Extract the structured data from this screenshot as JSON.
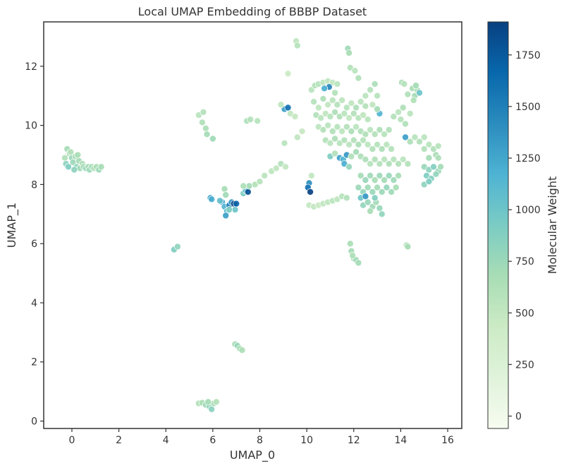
{
  "chart_data": {
    "type": "scatter",
    "title": "Local UMAP Embedding of BBBP Dataset",
    "xlabel": "UMAP_0",
    "ylabel": "UMAP_1",
    "xlim": [
      -1.2,
      16.6
    ],
    "ylim": [
      -0.25,
      13.5
    ],
    "xticks": [
      0,
      2,
      4,
      6,
      8,
      10,
      12,
      14,
      16
    ],
    "yticks": [
      0,
      2,
      4,
      6,
      8,
      10,
      12
    ],
    "grid": false,
    "color_encoding": "Molecular Weight",
    "colorbar": {
      "label": "Molecular Weight",
      "range": [
        -60,
        1910
      ],
      "ticks": [
        0,
        250,
        500,
        750,
        1000,
        1250,
        1500,
        1750
      ],
      "colormap": "GnBu",
      "stops": [
        "#f7fcf0",
        "#e0f3db",
        "#ccebc5",
        "#a8ddb5",
        "#7bccc4",
        "#4eb3d3",
        "#2b8cbe",
        "#0868ac",
        "#084081"
      ]
    },
    "point_style": {
      "edge_color": "#ffffff",
      "opacity": 0.92
    },
    "points": [
      [
        -0.3,
        8.9,
        620
      ],
      [
        -0.2,
        9.2,
        700
      ],
      [
        -0.1,
        9.05,
        680
      ],
      [
        0.0,
        8.9,
        760
      ],
      [
        -0.25,
        8.7,
        820
      ],
      [
        -0.15,
        8.6,
        900
      ],
      [
        0.05,
        8.75,
        740
      ],
      [
        0.15,
        8.95,
        650
      ],
      [
        0.2,
        8.6,
        780
      ],
      [
        0.3,
        8.8,
        700
      ],
      [
        0.35,
        8.55,
        720
      ],
      [
        0.45,
        8.7,
        640
      ],
      [
        0.5,
        8.6,
        690
      ],
      [
        0.6,
        8.55,
        760
      ],
      [
        0.7,
        8.6,
        680
      ],
      [
        0.75,
        8.5,
        740
      ],
      [
        0.85,
        8.6,
        700
      ],
      [
        0.95,
        8.55,
        640
      ],
      [
        1.05,
        8.6,
        660
      ],
      [
        1.15,
        8.5,
        720
      ],
      [
        1.25,
        8.6,
        680
      ],
      [
        0.1,
        8.5,
        820
      ],
      [
        -0.05,
        9.1,
        600
      ],
      [
        0.25,
        9.0,
        660
      ],
      [
        5.4,
        10.35,
        560
      ],
      [
        5.6,
        10.45,
        600
      ],
      [
        5.55,
        10.1,
        620
      ],
      [
        5.7,
        9.9,
        650
      ],
      [
        5.75,
        9.7,
        700
      ],
      [
        6.0,
        9.55,
        720
      ],
      [
        6.5,
        7.85,
        680
      ],
      [
        6.55,
        7.65,
        720
      ],
      [
        6.4,
        7.4,
        1200
      ],
      [
        6.5,
        7.25,
        1150
      ],
      [
        6.6,
        7.1,
        1100
      ],
      [
        6.55,
        6.95,
        1300
      ],
      [
        6.7,
        7.3,
        1500
      ],
      [
        6.8,
        7.4,
        1350
      ],
      [
        6.9,
        7.35,
        1900
      ],
      [
        6.95,
        7.15,
        1000
      ],
      [
        7.0,
        7.35,
        1700
      ],
      [
        6.3,
        7.45,
        1050
      ],
      [
        5.9,
        7.55,
        1300
      ],
      [
        5.95,
        7.5,
        1200
      ],
      [
        6.7,
        7.15,
        900
      ],
      [
        7.3,
        7.7,
        900
      ],
      [
        7.4,
        7.8,
        1050
      ],
      [
        7.5,
        7.75,
        1800
      ],
      [
        7.55,
        7.95,
        700
      ],
      [
        7.3,
        7.95,
        650
      ],
      [
        7.45,
        10.15,
        650
      ],
      [
        7.6,
        10.2,
        600
      ],
      [
        7.9,
        10.15,
        580
      ],
      [
        7.8,
        8.0,
        600
      ],
      [
        8.0,
        8.1,
        580
      ],
      [
        8.2,
        8.3,
        560
      ],
      [
        8.5,
        8.45,
        540
      ],
      [
        8.7,
        8.55,
        520
      ],
      [
        8.9,
        8.7,
        600
      ],
      [
        9.1,
        8.6,
        500
      ],
      [
        9.05,
        10.55,
        1300
      ],
      [
        9.2,
        10.6,
        1600
      ],
      [
        8.9,
        10.7,
        520
      ],
      [
        9.3,
        10.4,
        500
      ],
      [
        9.5,
        10.3,
        480
      ],
      [
        9.6,
        9.6,
        520
      ],
      [
        9.8,
        9.8,
        460
      ],
      [
        9.05,
        9.4,
        560
      ],
      [
        9.2,
        11.75,
        420
      ],
      [
        9.55,
        12.85,
        520
      ],
      [
        9.6,
        12.7,
        580
      ],
      [
        10.1,
        8.05,
        1400
      ],
      [
        10.05,
        7.9,
        1600
      ],
      [
        10.15,
        7.75,
        1900
      ],
      [
        10.2,
        8.3,
        500
      ],
      [
        10.1,
        7.3,
        480
      ],
      [
        10.3,
        7.25,
        500
      ],
      [
        10.5,
        7.3,
        460
      ],
      [
        10.7,
        7.35,
        500
      ],
      [
        10.9,
        7.4,
        520
      ],
      [
        11.1,
        7.45,
        560
      ],
      [
        11.3,
        7.5,
        540
      ],
      [
        11.5,
        7.6,
        580
      ],
      [
        11.7,
        7.55,
        620
      ],
      [
        10.2,
        11.2,
        560
      ],
      [
        10.35,
        11.35,
        600
      ],
      [
        10.5,
        11.4,
        580
      ],
      [
        10.7,
        11.45,
        540
      ],
      [
        10.9,
        11.5,
        520
      ],
      [
        11.1,
        11.45,
        500
      ],
      [
        11.3,
        11.4,
        560
      ],
      [
        10.95,
        11.3,
        1450
      ],
      [
        10.75,
        11.25,
        1200
      ],
      [
        11.2,
        11.1,
        600
      ],
      [
        11.75,
        12.6,
        720
      ],
      [
        11.8,
        12.45,
        680
      ],
      [
        11.85,
        11.95,
        600
      ],
      [
        12.05,
        11.85,
        560
      ],
      [
        12.2,
        11.6,
        620
      ],
      [
        10.3,
        10.8,
        580
      ],
      [
        10.5,
        10.6,
        520
      ],
      [
        10.7,
        10.9,
        640
      ],
      [
        10.9,
        10.7,
        500
      ],
      [
        11.1,
        10.85,
        560
      ],
      [
        11.3,
        10.7,
        600
      ],
      [
        11.5,
        10.85,
        540
      ],
      [
        11.7,
        10.6,
        580
      ],
      [
        11.9,
        10.75,
        520
      ],
      [
        12.1,
        10.6,
        640
      ],
      [
        12.3,
        10.8,
        560
      ],
      [
        12.5,
        10.65,
        600
      ],
      [
        10.4,
        10.35,
        600
      ],
      [
        10.6,
        10.25,
        560
      ],
      [
        10.8,
        10.4,
        520
      ],
      [
        11.0,
        10.3,
        580
      ],
      [
        11.2,
        10.45,
        640
      ],
      [
        11.4,
        10.3,
        620
      ],
      [
        11.6,
        10.4,
        560
      ],
      [
        11.8,
        10.25,
        500
      ],
      [
        12.0,
        10.4,
        600
      ],
      [
        12.2,
        10.25,
        580
      ],
      [
        12.4,
        10.35,
        520
      ],
      [
        10.5,
        9.95,
        540
      ],
      [
        10.7,
        9.85,
        600
      ],
      [
        10.9,
        10.0,
        560
      ],
      [
        11.1,
        9.8,
        620
      ],
      [
        11.3,
        9.95,
        580
      ],
      [
        11.5,
        9.8,
        540
      ],
      [
        11.7,
        9.95,
        600
      ],
      [
        11.9,
        9.8,
        640
      ],
      [
        12.1,
        9.95,
        560
      ],
      [
        12.3,
        9.8,
        620
      ],
      [
        10.8,
        9.5,
        600
      ],
      [
        11.0,
        9.4,
        560
      ],
      [
        11.2,
        9.55,
        640
      ],
      [
        11.4,
        9.4,
        580
      ],
      [
        11.6,
        9.5,
        620
      ],
      [
        11.8,
        9.35,
        560
      ],
      [
        12.0,
        9.5,
        600
      ],
      [
        12.2,
        9.35,
        660
      ],
      [
        12.4,
        9.5,
        580
      ],
      [
        11.0,
        8.95,
        900
      ],
      [
        11.2,
        9.05,
        620
      ],
      [
        11.4,
        8.9,
        1300
      ],
      [
        11.55,
        8.85,
        1150
      ],
      [
        11.7,
        9.0,
        1350
      ],
      [
        11.9,
        8.95,
        620
      ],
      [
        12.1,
        9.1,
        700
      ],
      [
        12.3,
        8.95,
        640
      ],
      [
        11.6,
        8.7,
        1200
      ],
      [
        11.8,
        8.6,
        780
      ],
      [
        12.5,
        11.0,
        560
      ],
      [
        12.7,
        11.2,
        600
      ],
      [
        12.9,
        11.4,
        640
      ],
      [
        13.0,
        11.0,
        580
      ],
      [
        12.8,
        10.7,
        520
      ],
      [
        13.1,
        10.4,
        1150
      ],
      [
        13.0,
        10.55,
        700
      ],
      [
        12.6,
        10.2,
        560
      ],
      [
        12.5,
        9.7,
        620
      ],
      [
        12.7,
        9.85,
        560
      ],
      [
        12.9,
        9.7,
        600
      ],
      [
        13.1,
        9.85,
        640
      ],
      [
        13.3,
        9.7,
        580
      ],
      [
        13.5,
        9.85,
        620
      ],
      [
        12.6,
        9.35,
        560
      ],
      [
        12.8,
        9.2,
        620
      ],
      [
        13.0,
        9.35,
        580
      ],
      [
        13.2,
        9.2,
        640
      ],
      [
        13.4,
        9.35,
        560
      ],
      [
        13.6,
        9.2,
        600
      ],
      [
        12.5,
        8.85,
        640
      ],
      [
        12.7,
        8.7,
        580
      ],
      [
        12.9,
        8.85,
        620
      ],
      [
        13.1,
        8.7,
        600
      ],
      [
        13.3,
        8.85,
        560
      ],
      [
        13.5,
        8.7,
        640
      ],
      [
        13.7,
        8.85,
        580
      ],
      [
        13.9,
        8.7,
        620
      ],
      [
        14.1,
        8.85,
        560
      ],
      [
        14.3,
        8.7,
        600
      ],
      [
        12.3,
        8.3,
        700
      ],
      [
        12.5,
        8.15,
        760
      ],
      [
        12.7,
        8.3,
        720
      ],
      [
        12.9,
        8.15,
        680
      ],
      [
        13.1,
        8.3,
        740
      ],
      [
        13.3,
        8.15,
        700
      ],
      [
        13.5,
        8.3,
        760
      ],
      [
        13.7,
        8.15,
        720
      ],
      [
        13.9,
        8.3,
        680
      ],
      [
        12.2,
        7.9,
        740
      ],
      [
        12.4,
        7.75,
        780
      ],
      [
        12.6,
        7.9,
        720
      ],
      [
        12.8,
        7.75,
        760
      ],
      [
        13.0,
        7.9,
        700
      ],
      [
        13.2,
        7.75,
        740
      ],
      [
        13.4,
        7.9,
        780
      ],
      [
        13.6,
        7.75,
        720
      ],
      [
        13.8,
        7.9,
        680
      ],
      [
        12.3,
        7.55,
        1000
      ],
      [
        12.4,
        7.3,
        800
      ],
      [
        12.6,
        7.4,
        760
      ],
      [
        12.8,
        7.25,
        720
      ],
      [
        12.95,
        7.4,
        700
      ],
      [
        13.1,
        7.2,
        760
      ],
      [
        13.2,
        7.0,
        800
      ],
      [
        12.7,
        7.1,
        680
      ],
      [
        12.5,
        7.6,
        1350
      ],
      [
        12.9,
        7.55,
        880
      ],
      [
        13.7,
        10.3,
        600
      ],
      [
        13.9,
        10.45,
        560
      ],
      [
        14.1,
        10.6,
        640
      ],
      [
        14.0,
        10.2,
        580
      ],
      [
        14.2,
        10.05,
        620
      ],
      [
        14.4,
        10.4,
        560
      ],
      [
        14.05,
        11.45,
        640
      ],
      [
        14.15,
        11.4,
        580
      ],
      [
        14.3,
        11.05,
        620
      ],
      [
        14.5,
        11.25,
        660
      ],
      [
        14.6,
        11.0,
        700
      ],
      [
        14.7,
        11.2,
        640
      ],
      [
        14.8,
        11.1,
        1000
      ],
      [
        14.65,
        11.35,
        700
      ],
      [
        14.55,
        10.85,
        620
      ],
      [
        14.2,
        9.6,
        1300
      ],
      [
        14.4,
        9.45,
        640
      ],
      [
        14.6,
        9.6,
        580
      ],
      [
        14.8,
        9.45,
        620
      ],
      [
        15.0,
        9.6,
        560
      ],
      [
        15.0,
        9.2,
        600
      ],
      [
        15.2,
        9.35,
        560
      ],
      [
        15.4,
        9.2,
        620
      ],
      [
        15.6,
        9.3,
        580
      ],
      [
        15.5,
        9.0,
        660
      ],
      [
        15.2,
        8.9,
        700
      ],
      [
        15.0,
        8.6,
        760
      ],
      [
        15.2,
        8.5,
        820
      ],
      [
        15.4,
        8.6,
        880
      ],
      [
        15.6,
        8.45,
        760
      ],
      [
        15.1,
        8.3,
        900
      ],
      [
        15.3,
        8.2,
        860
      ],
      [
        15.5,
        8.35,
        800
      ],
      [
        15.0,
        8.0,
        820
      ],
      [
        15.2,
        8.1,
        900
      ],
      [
        15.7,
        8.6,
        700
      ],
      [
        15.6,
        8.9,
        640
      ],
      [
        11.85,
        6.0,
        660
      ],
      [
        11.9,
        5.75,
        700
      ],
      [
        12.0,
        5.5,
        680
      ],
      [
        12.1,
        5.45,
        720
      ],
      [
        12.2,
        5.35,
        700
      ],
      [
        11.95,
        5.6,
        640
      ],
      [
        14.25,
        5.95,
        620
      ],
      [
        14.3,
        5.9,
        680
      ],
      [
        4.35,
        5.8,
        900
      ],
      [
        4.5,
        5.9,
        800
      ],
      [
        6.95,
        2.6,
        700
      ],
      [
        7.05,
        2.55,
        760
      ],
      [
        7.15,
        2.45,
        680
      ],
      [
        7.25,
        2.4,
        640
      ],
      [
        5.4,
        0.6,
        620
      ],
      [
        5.55,
        0.62,
        660
      ],
      [
        5.7,
        0.55,
        720
      ],
      [
        5.85,
        0.5,
        780
      ],
      [
        5.95,
        0.4,
        840
      ],
      [
        6.05,
        0.6,
        680
      ],
      [
        6.15,
        0.65,
        600
      ],
      [
        5.8,
        0.65,
        700
      ]
    ]
  }
}
